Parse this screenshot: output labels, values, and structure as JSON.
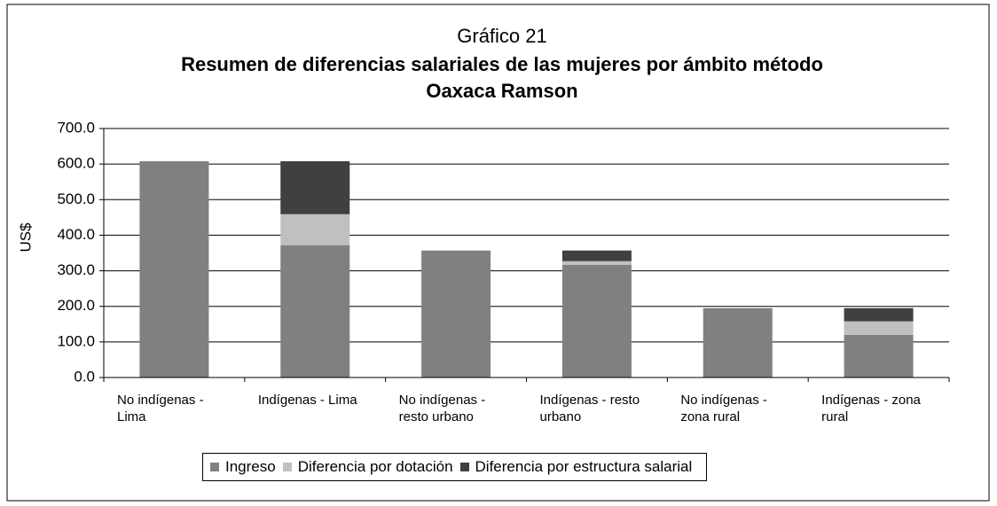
{
  "chart_data": {
    "type": "stacked_bar",
    "title": "Gráfico 21",
    "subtitle": "Resumen de diferencias salariales de las mujeres por ámbito método Oaxaca Ramson",
    "y_label": "US$",
    "categories": [
      "No indígenas - Lima",
      "Indígenas - Lima",
      "No indígenas - resto urbano",
      "Indígenas - resto urbano",
      "No indígenas - zona rural",
      "Indígenas - zona rural"
    ],
    "series": [
      {
        "name": "Ingreso",
        "color": "#808080",
        "values": [
          608,
          372,
          357,
          317,
          195,
          120
        ]
      },
      {
        "name": "Diferencia por dotación",
        "color": "#c0c0c0",
        "values": [
          0,
          87,
          0,
          10,
          0,
          38
        ]
      },
      {
        "name": "Diferencia por estructura salarial",
        "color": "#404040",
        "values": [
          0,
          149,
          0,
          30,
          0,
          37
        ]
      }
    ],
    "ylim": [
      0,
      700
    ],
    "yticks": [
      {
        "value": 0,
        "label": "0.0"
      },
      {
        "value": 100,
        "label": "100.0"
      },
      {
        "value": 200,
        "label": "200.0"
      },
      {
        "value": 300,
        "label": "300.0"
      },
      {
        "value": 400,
        "label": "400.0"
      },
      {
        "value": 500,
        "label": "500.0"
      },
      {
        "value": 600,
        "label": "600.0"
      },
      {
        "value": 700,
        "label": "700.0"
      }
    ],
    "grid": true,
    "legend": "bottom"
  }
}
